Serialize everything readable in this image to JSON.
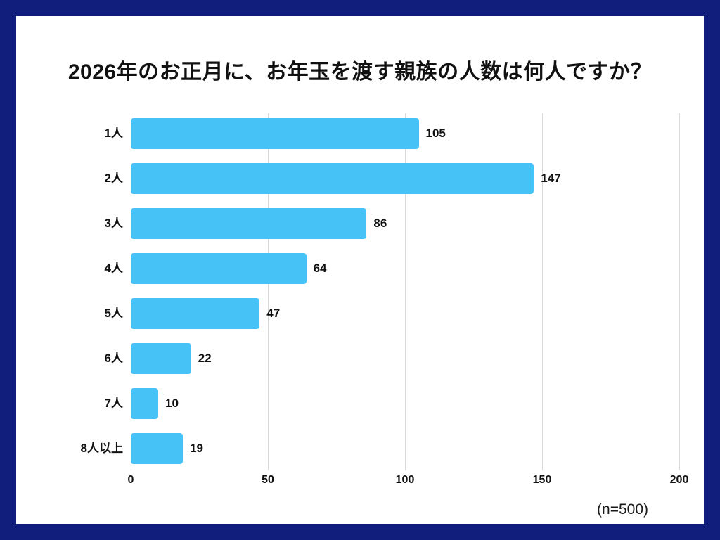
{
  "colors": {
    "frame": "#111E7C",
    "panel": "#FFFFFF",
    "bar": "#47C2F6",
    "gridline": "#D9D9D9",
    "text": "#111111"
  },
  "chart_data": {
    "type": "bar",
    "orientation": "horizontal",
    "title": "2026年のお正月に、お年玉を渡す親族の人数は何人ですか？",
    "categories": [
      "1人",
      "2人",
      "3人",
      "4人",
      "5人",
      "6人",
      "7人",
      "8人以上"
    ],
    "values": [
      105,
      147,
      86,
      64,
      47,
      22,
      10,
      19
    ],
    "xlabel": "",
    "ylabel": "",
    "xlim": [
      0,
      200
    ],
    "x_ticks": [
      0,
      50,
      100,
      150,
      200
    ],
    "grid": true,
    "value_labels": true,
    "legend": "none",
    "annotation": "(n=500)"
  }
}
